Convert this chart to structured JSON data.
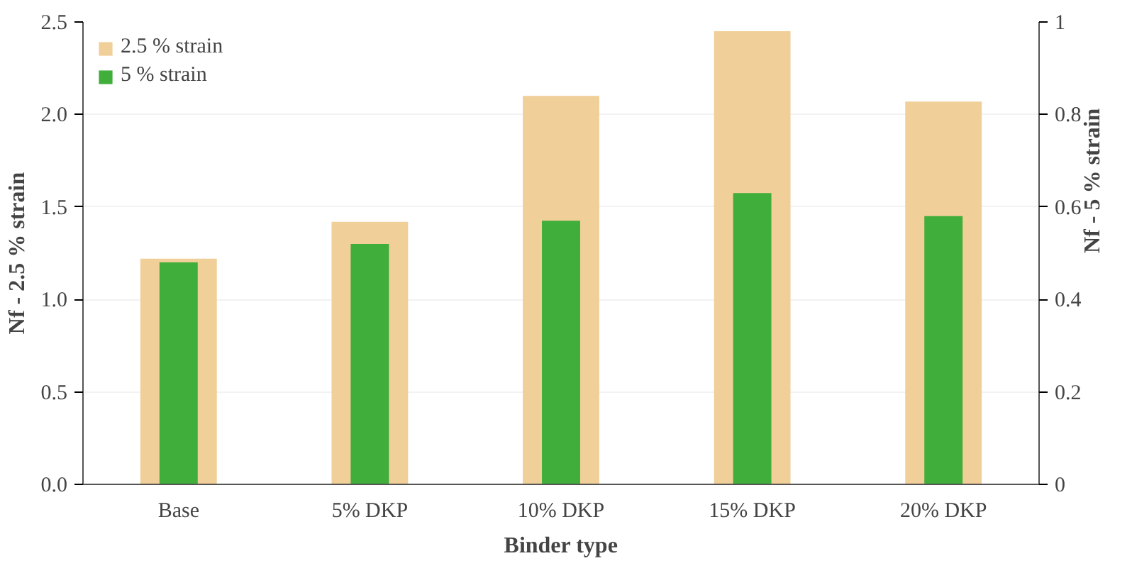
{
  "chart_data": {
    "type": "bar",
    "xlabel": "Binder type",
    "ylabel": "Nf - 2.5 % strain",
    "y2label": "Nf - 5 % strain",
    "categories": [
      "Base",
      "5% DKP",
      "10% DKP",
      "15% DKP",
      "20% DKP"
    ],
    "series": [
      {
        "name": "2.5 % strain",
        "color": "#f0cf98",
        "values": [
          1.22,
          1.42,
          2.1,
          2.45,
          2.07
        ]
      },
      {
        "name": "5 % strain",
        "color": "#3fae3a",
        "values": [
          0.48,
          0.52,
          0.57,
          0.63,
          0.58
        ],
        "axis": "y2"
      }
    ],
    "ylim": [
      0,
      2.5
    ],
    "yticks": [
      {
        "value": 0,
        "label": "0.0"
      },
      {
        "value": 0.5,
        "label": "0.5"
      },
      {
        "value": 1,
        "label": "1.0"
      },
      {
        "value": 1.5,
        "label": "1.5"
      },
      {
        "value": 2,
        "label": "2.0"
      },
      {
        "value": 2.5,
        "label": "2.5"
      }
    ],
    "y2lim": [
      0,
      1
    ],
    "y2ticks": [
      0,
      0.2,
      0.4,
      0.6,
      0.8,
      1
    ],
    "grid": "y",
    "legend": "top left"
  }
}
